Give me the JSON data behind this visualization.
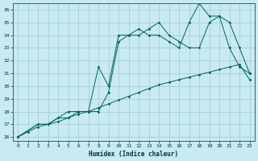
{
  "xlabel": "Humidex (Indice chaleur)",
  "bg_color": "#c8eaf0",
  "grid_color": "#a0c8d8",
  "line_color": "#006655",
  "xlim": [
    -0.5,
    23.5
  ],
  "ylim": [
    25.7,
    36.5
  ],
  "xticks": [
    0,
    1,
    2,
    3,
    4,
    5,
    6,
    7,
    8,
    9,
    10,
    11,
    12,
    13,
    14,
    15,
    16,
    17,
    18,
    19,
    20,
    21,
    22,
    23
  ],
  "yticks": [
    26,
    27,
    28,
    29,
    30,
    31,
    32,
    33,
    34,
    35,
    36
  ],
  "line1_x": [
    0,
    1,
    2,
    3,
    4,
    5,
    6,
    7,
    8,
    9,
    10,
    11,
    12,
    13,
    14,
    15,
    16,
    17,
    18,
    19,
    20,
    21,
    22,
    23
  ],
  "line1_y": [
    26,
    26.4,
    26.8,
    27.0,
    27.2,
    27.5,
    27.8,
    28.0,
    28.3,
    28.6,
    28.9,
    29.2,
    29.5,
    29.8,
    30.1,
    30.3,
    30.5,
    30.7,
    30.9,
    31.1,
    31.3,
    31.5,
    31.7,
    30.5
  ],
  "line2_x": [
    0,
    2,
    3,
    4,
    5,
    6,
    7,
    8,
    9,
    10,
    11,
    12,
    13,
    14,
    15,
    16,
    17,
    18,
    19,
    20,
    21,
    22,
    23
  ],
  "line2_y": [
    26,
    27,
    27,
    27.5,
    27.5,
    28,
    28,
    28,
    29.5,
    33.5,
    34,
    34,
    34.5,
    35,
    34,
    33.5,
    33,
    33,
    35,
    35.5,
    33,
    31.5,
    31
  ],
  "line3_x": [
    0,
    2,
    3,
    4,
    5,
    6,
    7,
    8,
    9,
    10,
    11,
    12,
    13,
    14,
    15,
    16,
    17,
    18,
    19,
    20,
    21,
    22,
    23
  ],
  "line3_y": [
    26,
    27,
    27,
    27.5,
    28,
    28,
    28,
    31.5,
    30,
    34,
    34,
    34.5,
    34,
    34,
    33.5,
    33,
    35,
    36.5,
    35.5,
    35.5,
    35,
    33,
    31
  ]
}
